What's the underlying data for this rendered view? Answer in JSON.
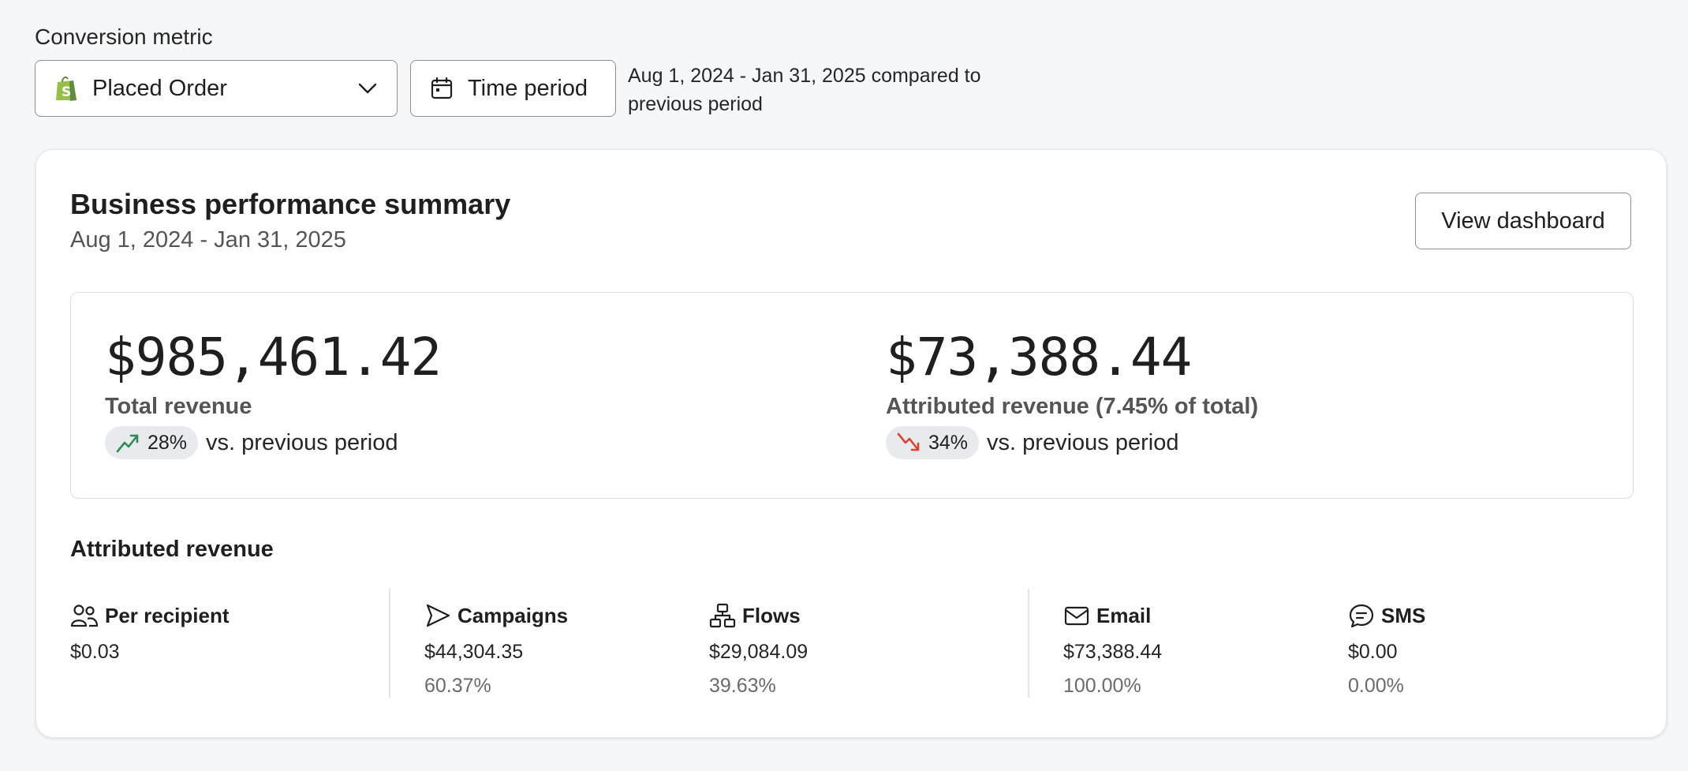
{
  "filters": {
    "metric_label": "Conversion metric",
    "metric_value": "Placed Order",
    "time_period_label": "Time period",
    "range_text": "Aug 1, 2024 - Jan 31, 2025 compared to previous period"
  },
  "summary": {
    "title": "Business performance summary",
    "date_range": "Aug 1, 2024 - Jan 31, 2025",
    "view_button": "View dashboard"
  },
  "kpis": {
    "total": {
      "value": "$985,461.42",
      "label": "Total revenue",
      "change": "28%",
      "direction": "up",
      "vs": "vs. previous period"
    },
    "attributed": {
      "value": "$73,388.44",
      "label": "Attributed revenue (7.45% of total)",
      "change": "34%",
      "direction": "down",
      "vs": "vs. previous period"
    }
  },
  "attributed": {
    "title": "Attributed revenue",
    "stats": [
      {
        "name": "Per recipient",
        "icon": "users-icon",
        "value": "$0.03",
        "pct": ""
      },
      {
        "name": "Campaigns",
        "icon": "send-icon",
        "value": "$44,304.35",
        "pct": "60.37%"
      },
      {
        "name": "Flows",
        "icon": "flow-icon",
        "value": "$29,084.09",
        "pct": "39.63%"
      },
      {
        "name": "Email",
        "icon": "mail-icon",
        "value": "$73,388.44",
        "pct": "100.00%"
      },
      {
        "name": "SMS",
        "icon": "sms-icon",
        "value": "$0.00",
        "pct": "0.00%"
      }
    ]
  },
  "colors": {
    "up": "#2e8b57",
    "down": "#d9442f",
    "shopify": "#95bf47"
  }
}
